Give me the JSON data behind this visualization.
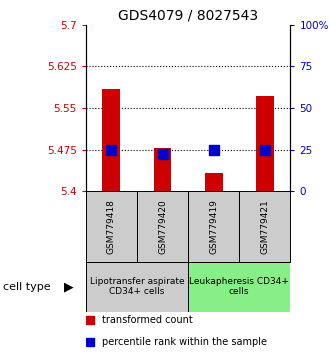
{
  "title": "GDS4079 / 8027543",
  "samples": [
    "GSM779418",
    "GSM779420",
    "GSM779419",
    "GSM779421"
  ],
  "transformed_count": [
    5.585,
    5.477,
    5.433,
    5.572
  ],
  "percentile_rank": [
    5.475,
    5.467,
    5.475,
    5.475
  ],
  "ylim_left": [
    5.4,
    5.7
  ],
  "ylim_right": [
    0,
    100
  ],
  "yticks_left": [
    5.4,
    5.475,
    5.55,
    5.625,
    5.7
  ],
  "yticks_right": [
    0,
    25,
    50,
    75,
    100
  ],
  "ytick_labels_left": [
    "5.4",
    "5.475",
    "5.55",
    "5.625",
    "5.7"
  ],
  "ytick_labels_right": [
    "0",
    "25",
    "50",
    "75",
    "100%"
  ],
  "hlines": [
    5.475,
    5.55,
    5.625
  ],
  "bar_color": "#cc0000",
  "dot_color": "#0000cc",
  "bar_width": 0.35,
  "dot_size": 50,
  "group1_label": "Lipotransfer aspirate\nCD34+ cells",
  "group2_label": "Leukapheresis CD34+\ncells",
  "group1_indices": [
    0,
    1
  ],
  "group2_indices": [
    2,
    3
  ],
  "group1_color": "#cccccc",
  "group2_color": "#88ee88",
  "cell_type_label": "cell type",
  "legend_red_label": "transformed count",
  "legend_blue_label": "percentile rank within the sample",
  "title_fontsize": 10,
  "tick_fontsize": 7.5,
  "sample_label_fontsize": 6.5,
  "group_label_fontsize": 6.5,
  "legend_fontsize": 7
}
